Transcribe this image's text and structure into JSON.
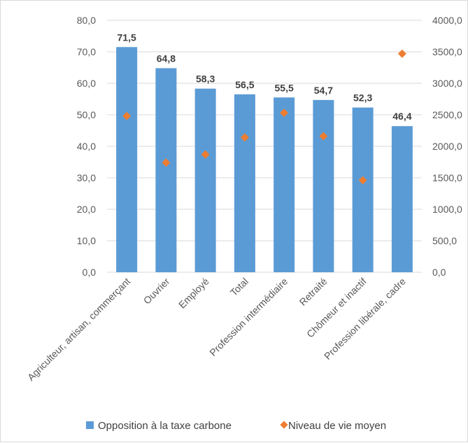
{
  "chart_data": {
    "type": "bar",
    "categories": [
      "Agriculteur, artisan, commerçant",
      "Ouvrier",
      "Employé",
      "Total",
      "Profession intermédiaire",
      "Retraité",
      "Chômeur et inactif",
      "Profession libérale, cadre"
    ],
    "series": [
      {
        "name": "Opposition à la taxe carbone",
        "type": "bar",
        "axis": "left",
        "color": "#5b9bd5",
        "values": [
          71.5,
          64.8,
          58.3,
          56.5,
          55.5,
          54.7,
          52.3,
          46.4
        ],
        "labels": [
          "71,5",
          "64,8",
          "58,3",
          "56,5",
          "55,5",
          "54,7",
          "52,3",
          "46,4"
        ]
      },
      {
        "name": "Niveau de vie moyen",
        "type": "scatter",
        "marker": "diamond",
        "axis": "right",
        "color": "#ed7d31",
        "values": [
          2480,
          1740,
          1870,
          2140,
          2530,
          2160,
          1460,
          3470
        ]
      }
    ],
    "y_left": {
      "ylim": [
        0,
        80
      ],
      "ticks": [
        0,
        10,
        20,
        30,
        40,
        50,
        60,
        70,
        80
      ],
      "tick_labels": [
        "0,0",
        "10,0",
        "20,0",
        "30,0",
        "40,0",
        "50,0",
        "60,0",
        "70,0",
        "80,0"
      ]
    },
    "y_right": {
      "ylim": [
        0,
        4000
      ],
      "ticks": [
        0,
        500,
        1000,
        1500,
        2000,
        2500,
        3000,
        3500,
        4000
      ],
      "tick_labels": [
        "0,0",
        "500,0",
        "1000,0",
        "1500,0",
        "2000,0",
        "2500,0",
        "3000,0",
        "3500,0",
        "4000,0"
      ]
    },
    "grid": true,
    "legend_position": "bottom"
  }
}
